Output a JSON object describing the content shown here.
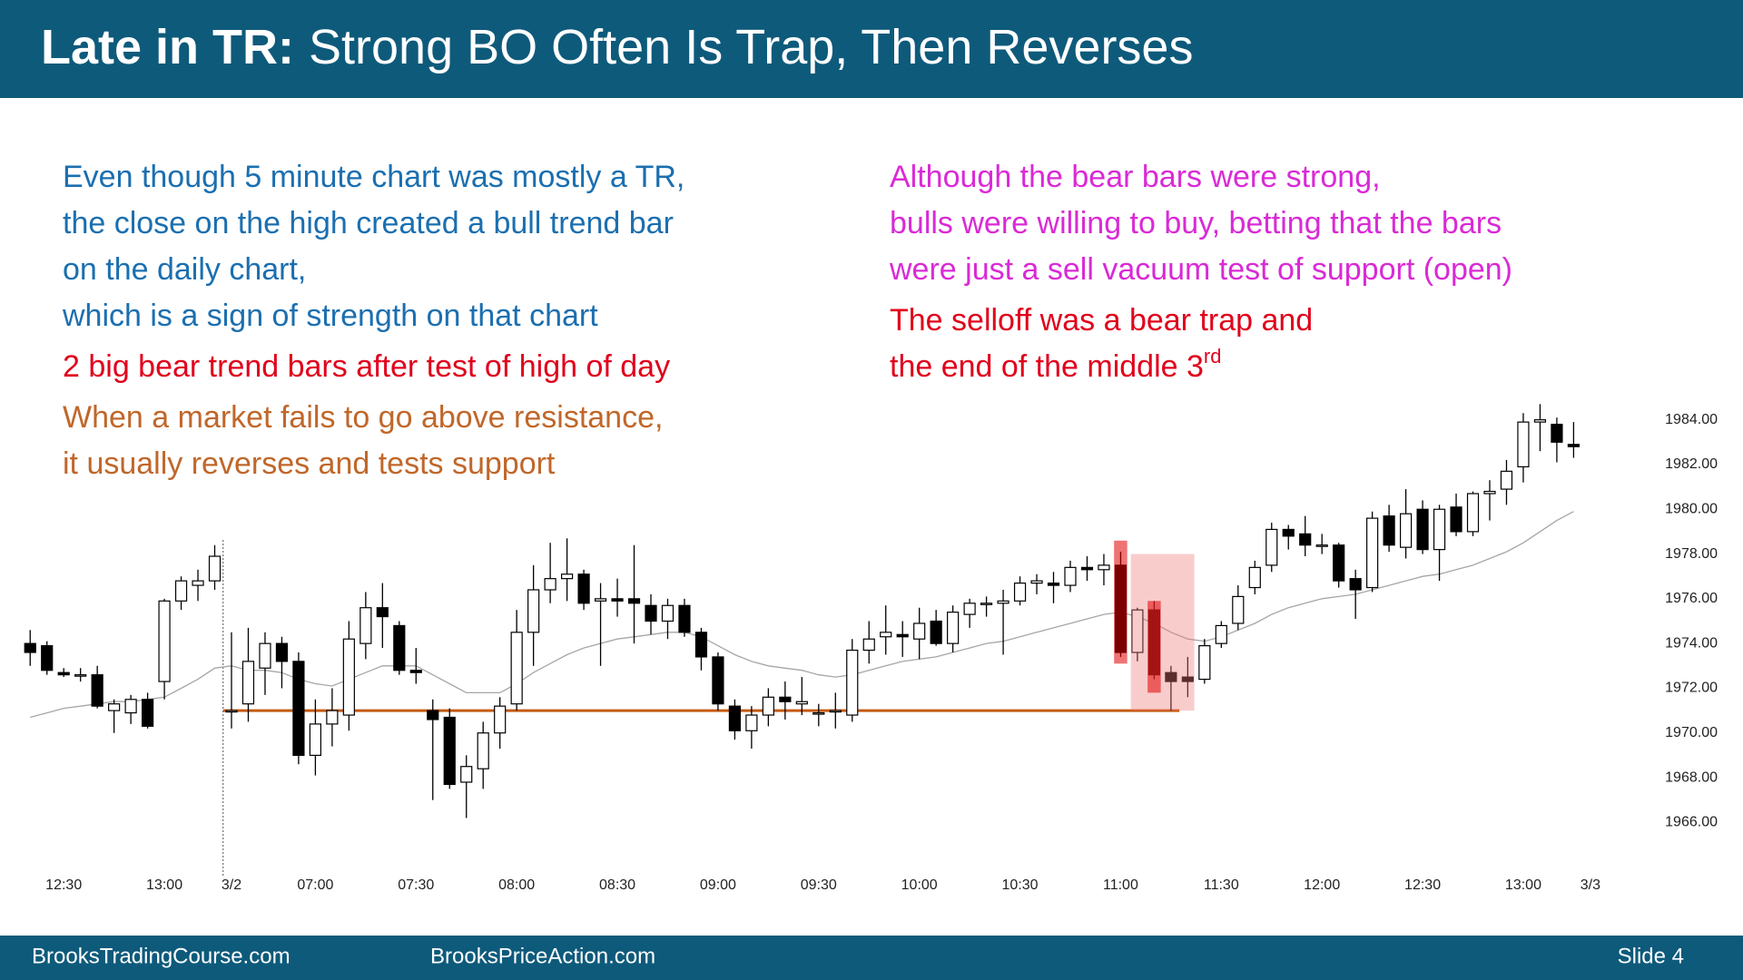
{
  "slide": {
    "title_bold": "Late in TR:",
    "title_rest": "Strong BO Often Is Trap, Then Reverses",
    "footer_left": "BrooksTradingCourse.com",
    "footer_mid": "BrooksPriceAction.com",
    "footer_right": "Slide 4",
    "annotations": [
      {
        "color": "#1b6fb0",
        "column": "left",
        "lines": [
          "Even though 5 minute chart was mostly a TR,",
          "the close on the high created a bull trend bar",
          "on the daily chart,",
          "which is a sign of strength on that chart"
        ]
      },
      {
        "color": "#e0001b",
        "column": "left",
        "lines": [
          "2 big bear trend bars after test of high of day"
        ]
      },
      {
        "color": "#c0672a",
        "column": "left",
        "lines": [
          "When a market fails to go above resistance,",
          "it usually reverses and tests support"
        ]
      },
      {
        "color": "#d92ad6",
        "column": "right",
        "lines": [
          "Although the bear bars were strong,",
          "bulls were willing to buy, betting that the bars",
          "were just a sell vacuum test of support (open)"
        ]
      },
      {
        "color": "#e0001b",
        "column": "right",
        "lines": [
          "The selloff was a bear trap and",
          "the end of the middle 3"
        ],
        "superscript": "rd"
      }
    ]
  },
  "chart_data": {
    "type": "candlestick",
    "categories": [
      null,
      null,
      "12:30",
      null,
      null,
      null,
      null,
      null,
      "13:00",
      null,
      null,
      null,
      "3/2",
      null,
      null,
      null,
      null,
      "07:00",
      null,
      null,
      null,
      null,
      null,
      "07:30",
      null,
      null,
      null,
      null,
      null,
      "08:00",
      null,
      null,
      null,
      null,
      null,
      "08:30",
      null,
      null,
      null,
      null,
      null,
      "09:00",
      null,
      null,
      null,
      null,
      null,
      "09:30",
      null,
      null,
      null,
      null,
      null,
      "10:00",
      null,
      null,
      null,
      null,
      null,
      "10:30",
      null,
      null,
      null,
      null,
      null,
      "11:00",
      null,
      null,
      null,
      null,
      null,
      "11:30",
      null,
      null,
      null,
      null,
      null,
      "12:00",
      null,
      null,
      null,
      null,
      null,
      "12:30",
      null,
      null,
      null,
      null,
      null,
      "13:00",
      null,
      null,
      null,
      "3/3"
    ],
    "open": [
      1974.0,
      1973.9,
      1972.7,
      1972.6,
      1972.6,
      1971.0,
      1970.9,
      1971.5,
      1972.3,
      1975.9,
      1976.6,
      1976.8,
      1971.0,
      1971.3,
      1972.9,
      1974.0,
      1973.2,
      1969.0,
      1970.4,
      1970.8,
      1974.0,
      1975.6,
      1974.8,
      1972.8,
      1971.0,
      1970.7,
      1967.8,
      1968.4,
      1970.0,
      1971.3,
      1974.5,
      1976.4,
      1976.9,
      1977.1,
      1975.9,
      1976.0,
      1976.0,
      1975.7,
      1975.0,
      1975.7,
      1974.5,
      1973.4,
      1971.2,
      1970.1,
      1970.8,
      1971.6,
      1971.3,
      1970.9,
      1971.0,
      1970.8,
      1973.7,
      1974.3,
      1974.4,
      1974.2,
      1975.0,
      1974.0,
      1975.3,
      1975.8,
      1975.8,
      1975.9,
      1976.7,
      1976.7,
      1976.6,
      1977.4,
      1977.3,
      1977.5,
      1973.6,
      1975.5,
      1972.7,
      1972.5,
      1972.4,
      1974.0,
      1974.9,
      1976.5,
      1977.5,
      1979.1,
      1978.9,
      1978.4,
      1978.4,
      1976.9,
      1976.5,
      1979.7,
      1978.3,
      1980.0,
      1978.2,
      1980.1,
      1979.0,
      1980.7,
      1980.9,
      1981.9,
      1983.9,
      1983.8,
      1982.9,
      null
    ],
    "high": [
      1974.6,
      1974.1,
      1972.9,
      1972.9,
      1973.0,
      1971.5,
      1971.7,
      1971.8,
      1976.0,
      1977.0,
      1977.3,
      1978.4,
      1974.5,
      1974.7,
      1974.5,
      1974.3,
      1973.6,
      1971.5,
      1972.0,
      1975.0,
      1976.3,
      1976.7,
      1975.0,
      1973.8,
      1971.5,
      1971.1,
      1969.0,
      1970.5,
      1971.6,
      1975.5,
      1977.5,
      1978.5,
      1978.7,
      1977.3,
      1976.7,
      1976.9,
      1978.4,
      1976.2,
      1976.0,
      1976.0,
      1974.7,
      1973.6,
      1971.5,
      1971.2,
      1972.0,
      1972.3,
      1972.5,
      1971.3,
      1971.8,
      1974.2,
      1975.0,
      1975.7,
      1975.0,
      1975.6,
      1975.5,
      1975.7,
      1976.0,
      1976.1,
      1976.4,
      1977.0,
      1977.1,
      1977.2,
      1977.7,
      1977.9,
      1978.0,
      1978.1,
      1975.6,
      1975.9,
      1973.0,
      1973.4,
      1974.2,
      1975.0,
      1976.6,
      1977.7,
      1979.4,
      1979.3,
      1979.7,
      1978.9,
      1978.5,
      1977.3,
      1979.9,
      1980.2,
      1980.9,
      1980.4,
      1980.2,
      1980.7,
      1980.8,
      1981.3,
      1982.2,
      1984.3,
      1984.7,
      1984.1,
      1983.9,
      null
    ],
    "low": [
      1973.0,
      1972.6,
      1972.5,
      1972.3,
      1971.1,
      1970.0,
      1970.4,
      1970.2,
      1971.5,
      1975.5,
      1975.9,
      1976.4,
      1970.2,
      1970.5,
      1971.7,
      1972.0,
      1968.6,
      1968.1,
      1969.4,
      1970.1,
      1973.3,
      1973.8,
      1972.6,
      1972.2,
      1967.0,
      1967.5,
      1966.2,
      1967.5,
      1969.3,
      1971.0,
      1973.0,
      1975.8,
      1975.9,
      1975.5,
      1973.0,
      1975.2,
      1974.0,
      1974.4,
      1974.2,
      1974.3,
      1972.8,
      1971.0,
      1969.7,
      1969.3,
      1970.3,
      1970.6,
      1970.8,
      1970.3,
      1970.2,
      1970.5,
      1973.1,
      1973.5,
      1973.4,
      1973.3,
      1973.9,
      1973.6,
      1974.7,
      1975.2,
      1973.5,
      1975.7,
      1976.2,
      1975.8,
      1976.3,
      1976.8,
      1976.6,
      1973.4,
      1973.2,
      1972.4,
      1971.0,
      1971.6,
      1972.2,
      1973.8,
      1974.6,
      1976.2,
      1977.2,
      1978.2,
      1977.9,
      1978.0,
      1976.5,
      1975.1,
      1976.3,
      1978.1,
      1977.8,
      1978.0,
      1976.8,
      1978.8,
      1978.8,
      1979.5,
      1980.2,
      1981.2,
      1982.6,
      1982.1,
      1982.3,
      null
    ],
    "close": [
      1973.6,
      1972.8,
      1972.6,
      1972.6,
      1971.2,
      1971.3,
      1971.5,
      1970.3,
      1975.9,
      1976.8,
      1976.8,
      1977.9,
      1971.0,
      1973.2,
      1974.0,
      1973.2,
      1969.0,
      1970.4,
      1971.0,
      1974.2,
      1975.6,
      1975.2,
      1972.8,
      1972.7,
      1970.6,
      1967.7,
      1968.5,
      1970.0,
      1971.2,
      1974.5,
      1976.4,
      1976.9,
      1977.1,
      1975.8,
      1976.0,
      1975.9,
      1975.8,
      1975.0,
      1975.7,
      1974.5,
      1973.4,
      1971.3,
      1970.1,
      1970.8,
      1971.6,
      1971.4,
      1971.4,
      1970.9,
      1971.0,
      1973.7,
      1974.2,
      1974.5,
      1974.3,
      1974.9,
      1974.0,
      1975.4,
      1975.8,
      1975.8,
      1975.9,
      1976.7,
      1976.8,
      1976.6,
      1977.4,
      1977.3,
      1977.5,
      1973.6,
      1975.5,
      1972.6,
      1972.3,
      1972.3,
      1973.9,
      1974.8,
      1976.1,
      1977.4,
      1979.1,
      1978.8,
      1978.4,
      1978.4,
      1976.8,
      1976.4,
      1979.6,
      1978.4,
      1979.8,
      1978.2,
      1980.0,
      1979.0,
      1980.7,
      1980.8,
      1981.7,
      1983.9,
      1984.0,
      1983.0,
      1982.8,
      null
    ],
    "ma": {
      "color": "#a6a6a6",
      "values": [
        1970.7,
        1970.9,
        1971.1,
        1971.2,
        1971.3,
        1971.4,
        1971.4,
        1971.5,
        1971.6,
        1972.0,
        1972.4,
        1972.9,
        1973.0,
        1972.8,
        1972.8,
        1972.7,
        1972.4,
        1972.2,
        1972.1,
        1972.4,
        1972.7,
        1973.0,
        1973.0,
        1973.0,
        1972.6,
        1972.2,
        1971.8,
        1971.8,
        1971.8,
        1972.2,
        1972.7,
        1973.1,
        1973.5,
        1973.8,
        1974.0,
        1974.2,
        1974.3,
        1974.4,
        1974.5,
        1974.5,
        1974.3,
        1973.9,
        1973.5,
        1973.2,
        1973.0,
        1972.9,
        1972.8,
        1972.6,
        1972.5,
        1972.6,
        1972.8,
        1973.0,
        1973.2,
        1973.3,
        1973.4,
        1973.6,
        1973.8,
        1974.0,
        1974.1,
        1974.3,
        1974.5,
        1974.7,
        1974.9,
        1975.1,
        1975.3,
        1975.4,
        1975.2,
        1974.9,
        1974.5,
        1974.2,
        1974.1,
        1974.3,
        1974.6,
        1974.9,
        1975.3,
        1975.6,
        1975.8,
        1976.0,
        1976.1,
        1976.2,
        1976.4,
        1976.6,
        1976.8,
        1977.0,
        1977.1,
        1977.3,
        1977.5,
        1977.8,
        1978.1,
        1978.5,
        1979.0,
        1979.5,
        1979.9,
        null
      ]
    },
    "support_line": {
      "value": 1971.0,
      "from": 12,
      "to": 68,
      "color": "#c55a11"
    },
    "highlights": [
      {
        "from": 66,
        "to": 69,
        "top": 1978.0,
        "bottom": 1971.0,
        "color": "rgba(240,120,120,0.38)"
      },
      {
        "from": 65,
        "to": 65,
        "top": 1978.6,
        "bottom": 1973.1,
        "color": "rgba(225,0,0,0.55)"
      },
      {
        "from": 67,
        "to": 67,
        "top": 1975.9,
        "bottom": 1971.8,
        "color": "rgba(225,0,0,0.55)"
      }
    ],
    "ylim": [
      1965,
      1985
    ],
    "yticks": [
      {
        "value": 1966,
        "label": "1966.00"
      },
      {
        "value": 1968,
        "label": "1968.00"
      },
      {
        "value": 1970,
        "label": "1970.00"
      },
      {
        "value": 1972,
        "label": "1972.00"
      },
      {
        "value": 1974,
        "label": "1974.00"
      },
      {
        "value": 1976,
        "label": "1976.00"
      },
      {
        "value": 1978,
        "label": "1978.00"
      },
      {
        "value": 1980,
        "label": "1980.00"
      },
      {
        "value": 1982,
        "label": "1982.00"
      },
      {
        "value": 1984,
        "label": "1984.00"
      }
    ],
    "grid": false
  }
}
